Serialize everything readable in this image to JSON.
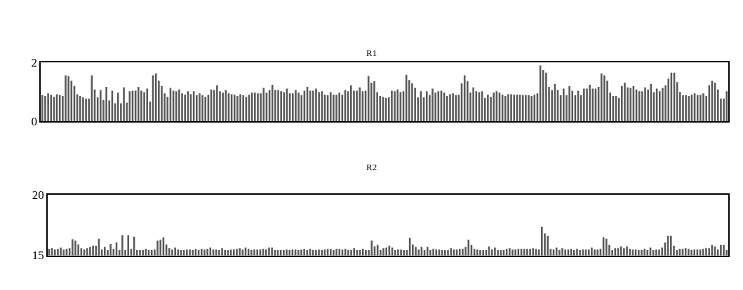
{
  "chart_data": [
    {
      "type": "bar",
      "title": "R1",
      "color": "#595959",
      "ylim": [
        0,
        2
      ],
      "yticks": [
        0,
        2
      ],
      "legend": false,
      "values": [
        0.89,
        0.86,
        0.95,
        0.9,
        0.83,
        0.92,
        0.89,
        0.86,
        1.56,
        1.54,
        1.38,
        1.2,
        0.92,
        0.86,
        0.81,
        0.77,
        0.77,
        1.56,
        1.08,
        0.81,
        1.06,
        0.72,
        1.17,
        0.7,
        1.04,
        0.61,
        0.97,
        0.61,
        1.15,
        0.63,
        1.02,
        1.04,
        1.04,
        1.17,
        1.04,
        0.99,
        1.11,
        0.67,
        1.56,
        1.63,
        1.38,
        1.2,
        0.95,
        0.83,
        1.13,
        1.04,
        1.02,
        1.08,
        0.95,
        0.9,
        1.02,
        0.92,
        1.02,
        0.88,
        0.95,
        0.88,
        0.83,
        0.9,
        1.08,
        1.06,
        1.22,
        1.02,
        0.97,
        1.06,
        0.95,
        0.92,
        0.9,
        0.86,
        0.92,
        0.88,
        0.83,
        0.9,
        0.97,
        0.97,
        0.95,
        0.95,
        1.13,
        0.97,
        1.06,
        1.24,
        1.06,
        1.06,
        1.02,
        0.99,
        1.11,
        0.95,
        0.95,
        1.06,
        0.97,
        0.88,
        1.04,
        1.17,
        1.04,
        1.04,
        1.11,
        0.99,
        1.02,
        0.9,
        0.88,
        0.99,
        0.9,
        0.9,
        0.97,
        0.9,
        1.06,
        1.02,
        1.22,
        1.04,
        1.04,
        1.15,
        1.02,
        1.04,
        1.54,
        1.31,
        1.36,
        0.99,
        0.86,
        0.83,
        0.79,
        0.81,
        1.04,
        1.02,
        1.08,
        0.99,
        1.02,
        1.58,
        1.4,
        1.29,
        1.13,
        0.81,
        1.02,
        0.81,
        1.02,
        0.88,
        1.11,
        0.97,
        1.02,
        1.04,
        0.97,
        0.86,
        0.92,
        0.95,
        0.88,
        0.9,
        1.29,
        1.56,
        1.36,
        0.97,
        1.15,
        1.02,
        0.99,
        1.02,
        0.79,
        0.9,
        0.83,
        0.97,
        1.02,
        0.97,
        0.9,
        0.86,
        0.92,
        0.92,
        0.9,
        0.9,
        0.9,
        0.88,
        0.88,
        0.88,
        0.86,
        0.9,
        0.95,
        1.9,
        1.74,
        1.65,
        1.17,
        1.06,
        1.27,
        1.06,
        0.88,
        1.11,
        0.88,
        1.2,
        1.04,
        0.88,
        1.04,
        0.88,
        1.11,
        1.11,
        1.24,
        1.11,
        1.11,
        1.17,
        1.63,
        1.56,
        1.38,
        0.97,
        0.86,
        0.86,
        0.79,
        1.2,
        1.31,
        1.15,
        1.13,
        1.2,
        1.08,
        1.02,
        1.02,
        1.15,
        1.08,
        1.27,
        0.99,
        1.11,
        1.02,
        1.13,
        1.22,
        1.45,
        1.65,
        1.65,
        1.33,
        0.99,
        0.88,
        0.88,
        0.86,
        0.9,
        0.95,
        0.88,
        0.9,
        0.95,
        0.86,
        1.22,
        1.38,
        1.31,
        1.08,
        0.77,
        0.77,
        1.02
      ]
    },
    {
      "type": "bar",
      "title": "R2",
      "color": "#595959",
      "ylim": [
        15,
        20
      ],
      "yticks": [
        15,
        20
      ],
      "legend": false,
      "values": [
        15.53,
        15.59,
        15.48,
        15.53,
        15.64,
        15.48,
        15.53,
        15.59,
        16.33,
        16.22,
        15.9,
        15.59,
        15.48,
        15.59,
        15.69,
        15.8,
        15.8,
        16.38,
        15.48,
        15.69,
        15.43,
        15.96,
        15.53,
        16.06,
        15.43,
        16.65,
        15.43,
        16.65,
        15.53,
        16.54,
        15.43,
        15.43,
        15.43,
        15.53,
        15.43,
        15.43,
        15.48,
        16.22,
        16.28,
        16.49,
        15.9,
        15.59,
        15.48,
        15.64,
        15.48,
        15.43,
        15.43,
        15.48,
        15.48,
        15.43,
        15.53,
        15.43,
        15.53,
        15.48,
        15.53,
        15.64,
        15.48,
        15.48,
        15.43,
        15.59,
        15.43,
        15.43,
        15.48,
        15.48,
        15.53,
        15.59,
        15.48,
        15.64,
        15.53,
        15.43,
        15.48,
        15.48,
        15.48,
        15.53,
        15.48,
        15.64,
        15.64,
        15.43,
        15.43,
        15.43,
        15.43,
        15.48,
        15.43,
        15.48,
        15.48,
        15.43,
        15.48,
        15.53,
        15.43,
        15.53,
        15.43,
        15.43,
        15.48,
        15.43,
        15.48,
        15.53,
        15.53,
        15.43,
        15.53,
        15.53,
        15.48,
        15.53,
        15.43,
        15.43,
        15.59,
        15.43,
        15.43,
        15.53,
        15.43,
        15.43,
        16.22,
        15.74,
        15.85,
        15.43,
        15.59,
        15.64,
        15.8,
        15.64,
        15.43,
        15.48,
        15.48,
        15.43,
        15.43,
        16.44,
        15.9,
        15.69,
        15.48,
        15.69,
        15.43,
        15.69,
        15.43,
        15.53,
        15.48,
        15.48,
        15.43,
        15.43,
        15.43,
        15.59,
        15.48,
        15.48,
        15.53,
        15.53,
        15.69,
        16.28,
        15.85,
        15.53,
        15.48,
        15.43,
        15.43,
        15.43,
        15.74,
        15.48,
        15.64,
        15.43,
        15.43,
        15.43,
        15.53,
        15.59,
        15.48,
        15.48,
        15.53,
        15.53,
        15.53,
        15.53,
        15.53,
        15.59,
        15.53,
        15.48,
        17.34,
        16.81,
        16.6,
        15.53,
        15.48,
        15.64,
        15.43,
        15.59,
        15.48,
        15.48,
        15.53,
        15.43,
        15.53,
        15.43,
        15.48,
        15.48,
        15.48,
        15.64,
        15.48,
        15.48,
        15.53,
        16.49,
        16.38,
        15.85,
        15.43,
        15.59,
        15.59,
        15.74,
        15.59,
        15.74,
        15.53,
        15.48,
        15.48,
        15.43,
        15.43,
        15.53,
        15.43,
        15.64,
        15.43,
        15.48,
        15.48,
        15.64,
        16.06,
        16.6,
        16.6,
        15.8,
        15.43,
        15.53,
        15.53,
        15.59,
        15.53,
        15.43,
        15.48,
        15.48,
        15.48,
        15.53,
        15.59,
        15.59,
        15.85,
        15.74,
        15.48,
        15.85,
        15.85,
        15.43
      ]
    }
  ]
}
